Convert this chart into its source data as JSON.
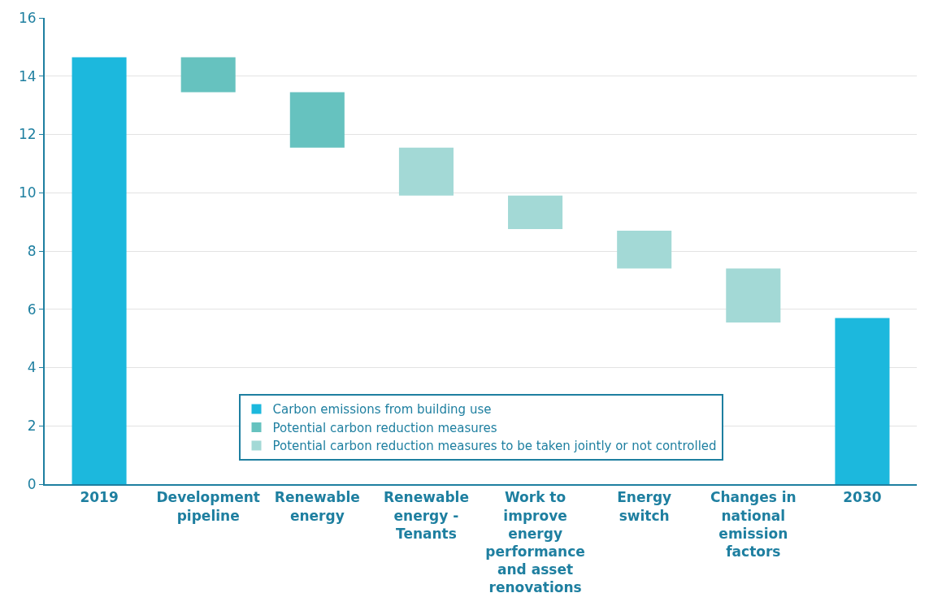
{
  "chart_data": {
    "type": "bar",
    "categories": [
      "2019",
      "Development pipeline",
      "Renewable energy",
      "Renewable energy - Tenants",
      "Work to improve energy performance and asset renovations",
      "Energy switch",
      "Changes in national emission factors",
      "2030"
    ],
    "series": [
      {
        "name": "Carbon emissions from building use",
        "color": "#1cb8dd",
        "values": [
          14.65,
          null,
          null,
          null,
          null,
          null,
          null,
          5.7
        ],
        "base": [
          0,
          null,
          null,
          null,
          null,
          null,
          null,
          0
        ]
      },
      {
        "name": "Potential carbon reduction measures",
        "color": "#66c2bf",
        "values": [
          null,
          -1.2,
          -1.9,
          null,
          null,
          null,
          null,
          null
        ],
        "base": [
          null,
          14.65,
          13.45,
          null,
          null,
          null,
          null,
          null
        ]
      },
      {
        "name": "Potential carbon reduction measures to be taken jointly or not controlled",
        "color": "#a3d9d6",
        "values": [
          null,
          null,
          null,
          -1.65,
          -1.15,
          -1.3,
          -1.85,
          null
        ],
        "base": [
          null,
          null,
          null,
          11.55,
          9.9,
          8.7,
          7.4,
          null
        ]
      }
    ],
    "ylim": [
      0,
      16
    ],
    "yticks": [
      0,
      2,
      4,
      6,
      8,
      10,
      12,
      14,
      16
    ],
    "grid": "y",
    "legend": "bottom"
  }
}
